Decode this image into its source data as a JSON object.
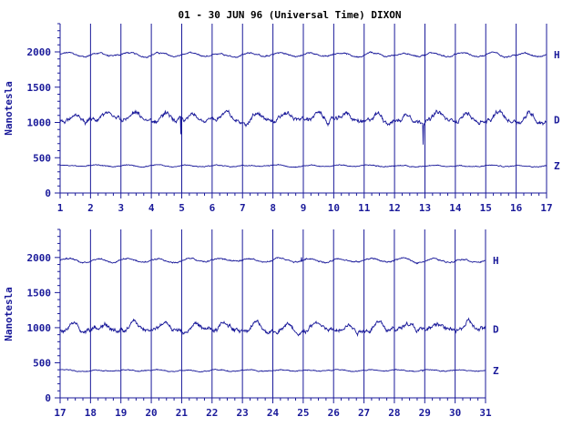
{
  "colors": {
    "ink": "#1a1a9a",
    "background": "#ffffff"
  },
  "chart_data": [
    {
      "type": "line",
      "title": "01 - 30 JUN 96 (Universal Time) DIXON",
      "ylabel": "Nanotesla",
      "xlim": [
        1,
        17
      ],
      "ylim": [
        0,
        2400
      ],
      "x_ticks": [
        "1",
        "2",
        "3",
        "4",
        "5",
        "6",
        "7",
        "8",
        "9",
        "10",
        "11",
        "12",
        "13",
        "14",
        "15",
        "16",
        "17"
      ],
      "y_ticks": [
        "0",
        "500",
        "1000",
        "1500",
        "2000"
      ],
      "grid": "vertical lines at each day",
      "series": [
        {
          "name": "H",
          "baseline": 1960
        },
        {
          "name": "D",
          "baseline": 1040
        },
        {
          "name": "Z",
          "baseline": 385
        }
      ]
    },
    {
      "type": "line",
      "ylabel": "Nanotesla",
      "xlim": [
        17,
        31
      ],
      "ylim": [
        0,
        2400
      ],
      "x_ticks": [
        "17",
        "18",
        "19",
        "20",
        "21",
        "22",
        "23",
        "24",
        "25",
        "26",
        "27",
        "28",
        "29",
        "30",
        "31"
      ],
      "y_ticks": [
        "0",
        "500",
        "1000",
        "1500",
        "2000"
      ],
      "grid": "vertical lines at each day",
      "series": [
        {
          "name": "H",
          "baseline": 1960
        },
        {
          "name": "D",
          "baseline": 980
        },
        {
          "name": "Z",
          "baseline": 390
        }
      ]
    }
  ]
}
